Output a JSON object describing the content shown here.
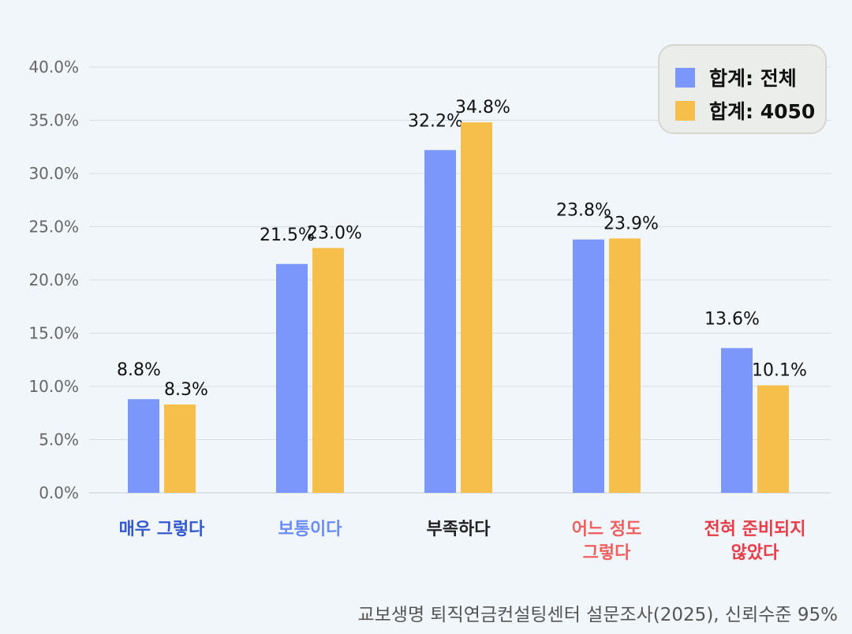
{
  "chart_data": {
    "type": "bar",
    "categories": [
      "매우 그렇다",
      "보통이다",
      "부족하다",
      "어느 정도\n그렇다",
      "전혀 준비되지\n않았다"
    ],
    "category_colors": [
      "#3558d0",
      "#6b8cf8",
      "#222222",
      "#f06060",
      "#e83c48"
    ],
    "series": [
      {
        "name": "합계: 전체",
        "color": "#7b97fb",
        "values": [
          8.8,
          21.5,
          32.2,
          23.8,
          13.6
        ],
        "labels": [
          "8.8%",
          "21.5%",
          "32.2%",
          "23.8%",
          "13.6%"
        ]
      },
      {
        "name": "합계: 4050",
        "color": "#f5bf4a",
        "values": [
          8.3,
          23.0,
          34.8,
          23.9,
          10.1
        ],
        "labels": [
          "8.3%",
          "23.0%",
          "34.8%",
          "23.9%",
          "10.1%"
        ]
      }
    ],
    "ylim": [
      0,
      40
    ],
    "yticks": [
      "0.0%",
      "5.0%",
      "10.0%",
      "15.0%",
      "20.0%",
      "25.0%",
      "30.0%",
      "35.0%",
      "40.0%"
    ],
    "grid": true,
    "legend_position": "top-right"
  },
  "source": "교보생명 퇴직연금컨설팅센터 설문조사(2025), 신뢰수준 95%"
}
